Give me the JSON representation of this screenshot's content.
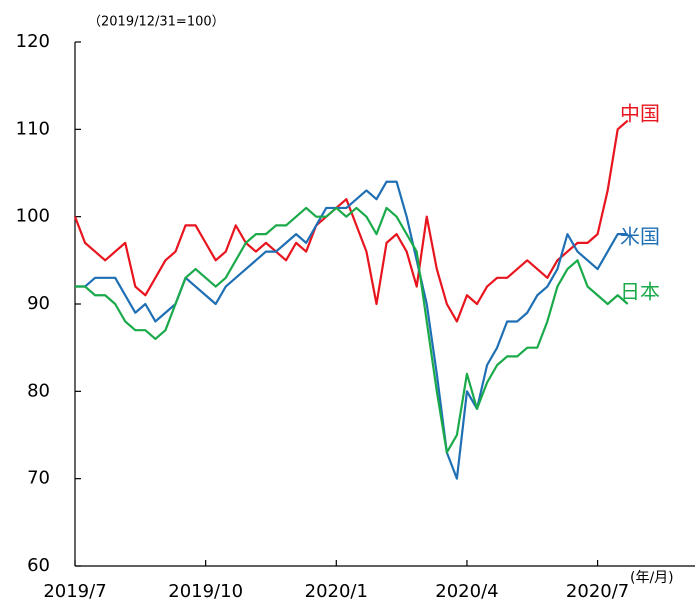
{
  "chart_data": {
    "type": "line",
    "subtitle": "（2019/12/31=100）",
    "x_label": "(年/月)",
    "categories": [
      "2019/7",
      null,
      null,
      null,
      null,
      null,
      null,
      null,
      null,
      null,
      null,
      null,
      null,
      "2019/10",
      null,
      null,
      null,
      null,
      null,
      null,
      null,
      null,
      null,
      null,
      null,
      null,
      "2020/1",
      null,
      null,
      null,
      null,
      null,
      null,
      null,
      null,
      null,
      null,
      null,
      null,
      "2020/4",
      null,
      null,
      null,
      null,
      null,
      null,
      null,
      null,
      null,
      null,
      null,
      null,
      "2020/7",
      null,
      null,
      null
    ],
    "series": [
      {
        "name": "中国",
        "color": "#e8141e",
        "values": [
          100,
          97,
          96,
          95,
          96,
          97,
          92,
          91,
          93,
          95,
          96,
          99,
          99,
          97,
          95,
          96,
          99,
          97,
          96,
          97,
          96,
          95,
          97,
          96,
          99,
          100,
          101,
          102,
          99,
          96,
          90,
          97,
          98,
          96,
          92,
          100,
          94,
          90,
          88,
          91,
          90,
          92,
          93,
          93,
          94,
          95,
          94,
          93,
          95,
          96,
          97,
          97,
          98,
          103,
          110,
          111
        ]
      },
      {
        "name": "米国",
        "color": "#1f6fb4",
        "values": [
          92,
          92,
          93,
          93,
          93,
          91,
          89,
          90,
          88,
          89,
          90,
          93,
          92,
          91,
          90,
          92,
          93,
          94,
          95,
          96,
          96,
          97,
          98,
          97,
          99,
          101,
          101,
          101,
          102,
          103,
          102,
          104,
          104,
          100,
          95,
          90,
          82,
          73,
          70,
          80,
          78,
          83,
          85,
          88,
          88,
          89,
          91,
          92,
          94,
          98,
          96,
          95,
          94,
          96,
          98,
          98
        ]
      },
      {
        "name": "日本",
        "color": "#1aaa4a",
        "values": [
          92,
          92,
          91,
          91,
          90,
          88,
          87,
          87,
          86,
          87,
          90,
          93,
          94,
          93,
          92,
          93,
          95,
          97,
          98,
          98,
          99,
          99,
          100,
          101,
          100,
          100,
          101,
          100,
          101,
          100,
          98,
          101,
          100,
          98,
          96,
          88,
          80,
          73,
          75,
          82,
          78,
          81,
          83,
          84,
          84,
          85,
          85,
          88,
          92,
          94,
          95,
          92,
          91,
          90,
          91,
          90
        ]
      }
    ],
    "ylim": [
      60,
      120
    ],
    "yticks": [
      60,
      70,
      80,
      90,
      100,
      110,
      120
    ]
  }
}
